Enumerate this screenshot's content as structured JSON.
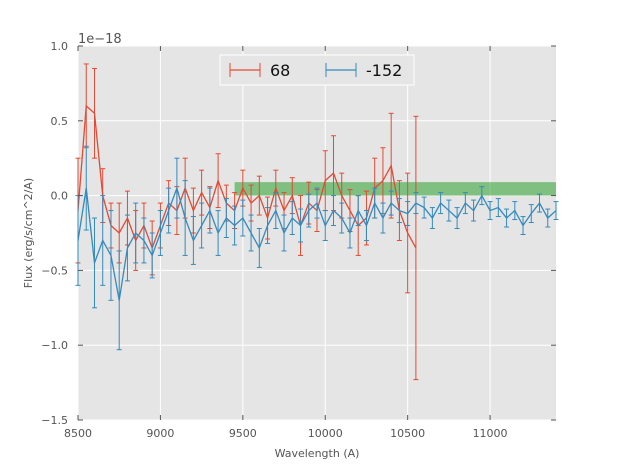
{
  "chart_data": {
    "type": "line",
    "title": "",
    "xlabel": "Wavelength (A)",
    "ylabel": "Flux (erg/s/cm^2/A)",
    "y_offset_label": "1e−18",
    "xlim": [
      8500,
      11400
    ],
    "ylim": [
      -1.5,
      1.0
    ],
    "x_ticks": [
      8500,
      9000,
      9500,
      10000,
      10500,
      11000
    ],
    "x_tick_labels": [
      "8500",
      "9000",
      "9500",
      "10000",
      "10500",
      "11000"
    ],
    "y_ticks": [
      -1.5,
      -1.0,
      -0.5,
      0.0,
      0.5,
      1.0
    ],
    "y_tick_labels": [
      "−1.5",
      "−1.0",
      "−0.5",
      "0.0",
      "0.5",
      "1.0"
    ],
    "grid": true,
    "legend_position": "top-center",
    "band": {
      "x_start": 9450,
      "x_end": 11400,
      "y_start": 0.0,
      "y_end": 0.09,
      "color": "#2ca02c"
    },
    "series": [
      {
        "name": "68",
        "color": "#e24a33",
        "x": [
          8500,
          8550,
          8600,
          8650,
          8700,
          8750,
          8800,
          8850,
          8900,
          8950,
          9000,
          9050,
          9100,
          9150,
          9200,
          9250,
          9300,
          9350,
          9400,
          9450,
          9500,
          9550,
          9600,
          9650,
          9700,
          9750,
          9800,
          9850,
          9900,
          9950,
          10000,
          10050,
          10100,
          10150,
          10200,
          10250,
          10300,
          10350,
          10400,
          10450,
          10500,
          10550
        ],
        "y": [
          -0.1,
          0.6,
          0.55,
          0.0,
          -0.2,
          -0.25,
          -0.15,
          -0.3,
          -0.2,
          -0.35,
          -0.2,
          -0.05,
          -0.1,
          0.05,
          -0.1,
          0.02,
          -0.08,
          0.1,
          -0.05,
          -0.1,
          0.05,
          -0.05,
          0.0,
          -0.15,
          0.05,
          -0.1,
          0.0,
          -0.2,
          -0.05,
          -0.1,
          0.1,
          0.15,
          0.0,
          -0.1,
          -0.2,
          -0.15,
          0.05,
          0.1,
          0.2,
          -0.1,
          -0.25,
          -0.35
        ],
        "yerr": [
          0.35,
          0.28,
          0.3,
          0.18,
          0.15,
          0.2,
          0.18,
          0.2,
          0.15,
          0.18,
          0.15,
          0.15,
          0.16,
          0.2,
          0.15,
          0.15,
          0.14,
          0.18,
          0.12,
          0.12,
          0.12,
          0.12,
          0.13,
          0.14,
          0.12,
          0.12,
          0.12,
          0.2,
          0.14,
          0.14,
          0.2,
          0.25,
          0.15,
          0.14,
          0.2,
          0.18,
          0.2,
          0.22,
          0.35,
          0.2,
          0.4,
          0.88
        ]
      },
      {
        "name": "-152",
        "color": "#348abd",
        "x": [
          8500,
          8550,
          8600,
          8650,
          8700,
          8750,
          8800,
          8850,
          8900,
          8950,
          9000,
          9050,
          9100,
          9150,
          9200,
          9250,
          9300,
          9350,
          9400,
          9450,
          9500,
          9550,
          9600,
          9650,
          9700,
          9750,
          9800,
          9850,
          9900,
          9950,
          10000,
          10050,
          10100,
          10150,
          10200,
          10250,
          10300,
          10350,
          10400,
          10450,
          10500,
          10550,
          10600,
          10650,
          10700,
          10750,
          10800,
          10850,
          10900,
          10950,
          11000,
          11050,
          11100,
          11150,
          11200,
          11250,
          11300,
          11350,
          11400
        ],
        "y": [
          -0.3,
          0.05,
          -0.45,
          -0.3,
          -0.4,
          -0.7,
          -0.35,
          -0.25,
          -0.3,
          -0.4,
          -0.25,
          -0.1,
          0.05,
          -0.15,
          -0.3,
          -0.2,
          -0.1,
          -0.25,
          -0.15,
          -0.2,
          -0.15,
          -0.25,
          -0.35,
          -0.2,
          -0.1,
          -0.25,
          -0.15,
          -0.2,
          -0.1,
          -0.05,
          -0.2,
          -0.1,
          -0.15,
          -0.25,
          -0.1,
          -0.2,
          -0.05,
          -0.15,
          -0.05,
          -0.1,
          -0.12,
          -0.05,
          -0.08,
          -0.15,
          -0.05,
          -0.1,
          -0.15,
          -0.05,
          -0.1,
          0.0,
          -0.1,
          -0.08,
          -0.15,
          -0.1,
          -0.2,
          -0.12,
          -0.05,
          -0.15,
          -0.1
        ],
        "yerr": [
          0.3,
          0.28,
          0.3,
          0.3,
          0.3,
          0.33,
          0.22,
          0.2,
          0.15,
          0.15,
          0.15,
          0.15,
          0.2,
          0.25,
          0.16,
          0.15,
          0.15,
          0.15,
          0.13,
          0.13,
          0.12,
          0.12,
          0.13,
          0.12,
          0.12,
          0.12,
          0.11,
          0.11,
          0.11,
          0.1,
          0.1,
          0.1,
          0.1,
          0.1,
          0.1,
          0.1,
          0.1,
          0.1,
          0.08,
          0.08,
          0.08,
          0.07,
          0.07,
          0.07,
          0.07,
          0.07,
          0.07,
          0.07,
          0.07,
          0.06,
          0.06,
          0.06,
          0.06,
          0.06,
          0.06,
          0.06,
          0.06,
          0.06,
          0.06
        ]
      }
    ]
  }
}
